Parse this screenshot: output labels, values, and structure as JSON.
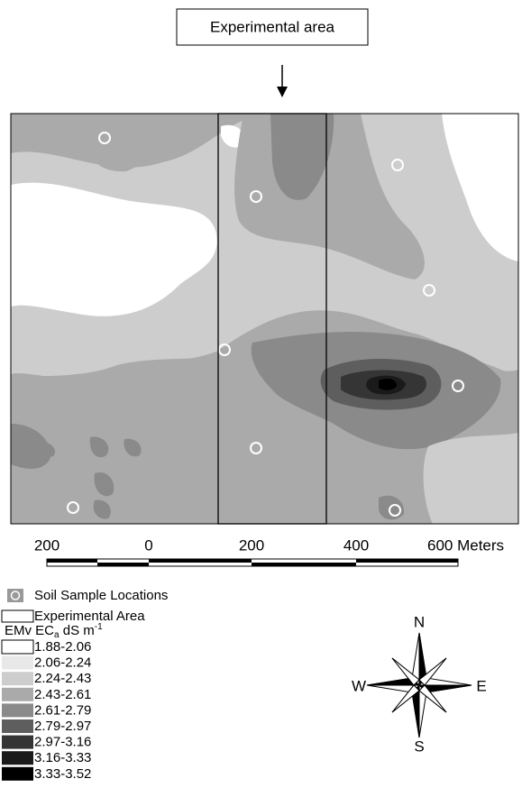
{
  "title": "Experimental area",
  "scale_bar": {
    "labels": [
      "200",
      "0",
      "200",
      "400",
      "600 Meters"
    ]
  },
  "legend": {
    "sample_locations": "Soil Sample Locations",
    "experimental_area": "Experimental Area",
    "variable": {
      "text": "EMv EC",
      "sub": "a",
      "unit": " dS m",
      "sup": "-1"
    },
    "classes": [
      {
        "label": "1.88-2.06",
        "color": "#ffffff"
      },
      {
        "label": "2.06-2.24",
        "color": "#e8e8e8"
      },
      {
        "label": "2.24-2.43",
        "color": "#cdcdcd"
      },
      {
        "label": "2.43-2.61",
        "color": "#aaaaaa"
      },
      {
        "label": "2.61-2.79",
        "color": "#8a8a8a"
      },
      {
        "label": "2.79-2.97",
        "color": "#5e5e5e"
      },
      {
        "label": "2.97-3.16",
        "color": "#353535"
      },
      {
        "label": "3.16-3.33",
        "color": "#1a1a1a"
      },
      {
        "label": "3.33-3.52",
        "color": "#000000"
      }
    ]
  },
  "compass": {
    "north": "N",
    "east": "E",
    "south": "S",
    "west": "W"
  }
}
